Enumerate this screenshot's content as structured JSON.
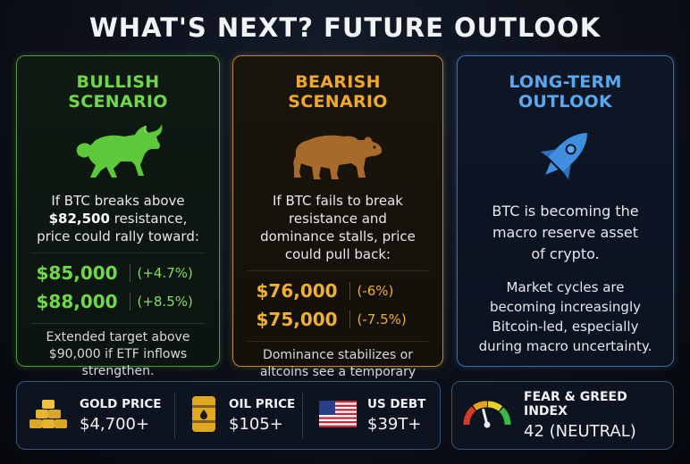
{
  "title": "WHAT'S NEXT? FUTURE OUTLOOK",
  "bullish": {
    "title": "BULLISH SCENARIO",
    "icon": "bull-icon",
    "desc_1": "If BTC breaks above",
    "desc_bold": "$82,500",
    "desc_2": " resistance,",
    "desc_3": "price could rally toward:",
    "targets": [
      {
        "price": "$85,000",
        "change": "(+4.7%)"
      },
      {
        "price": "$88,000",
        "change": "(+8.5%)"
      }
    ],
    "footer": "Extended target above $90,000 if ETF inflows strengthen.",
    "color": "#6fd84a"
  },
  "bearish": {
    "title": "BEARISH SCENARIO",
    "icon": "bear-icon",
    "desc": "If BTC fails to break resistance and dominance stalls, price could pull back:",
    "targets": [
      {
        "price": "$76,000",
        "change": "(-6%)"
      },
      {
        "price": "$75,000",
        "change": "(-7.5%)"
      }
    ],
    "footer": "Dominance stabilizes or altcoins see a temporary relief bounce.",
    "color": "#f0b030"
  },
  "long_term": {
    "title": "LONG-TERM OUTLOOK",
    "icon": "rocket-icon",
    "desc": "BTC is becoming the macro reserve asset of crypto.",
    "desc2": "Market cycles are becoming increasingly Bitcoin-led, especially during macro uncertainty.",
    "color": "#5aa8f0"
  },
  "stats": [
    {
      "label": "GOLD PRICE",
      "value": "$4,700+",
      "icon": "gold-bars-icon"
    },
    {
      "label": "OIL PRICE",
      "value": "$105+",
      "icon": "oil-barrel-icon"
    },
    {
      "label": "US DEBT",
      "value": "$39T+",
      "icon": "us-flag-icon"
    }
  ],
  "fear_greed": {
    "label": "FEAR & GREED INDEX",
    "value": "42 (NEUTRAL)",
    "icon": "gauge-icon",
    "index": 42
  }
}
